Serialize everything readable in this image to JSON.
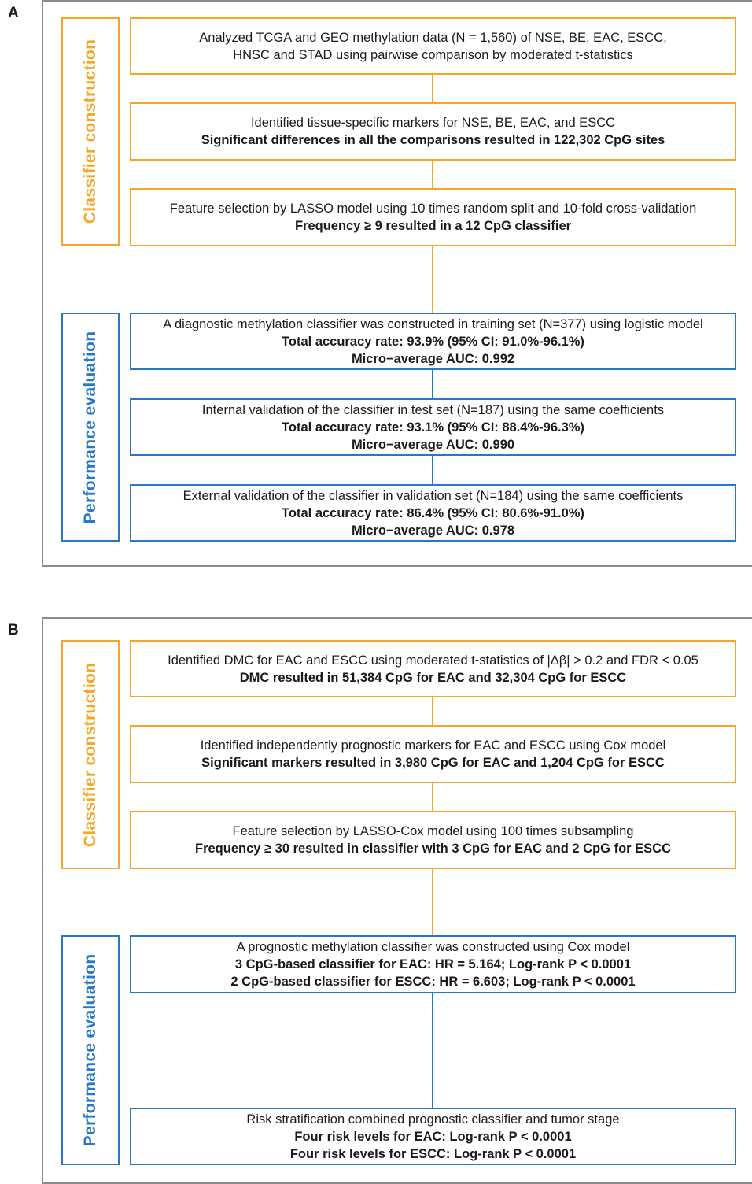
{
  "panelA": {
    "letter": "A",
    "side_labels": {
      "construction": "Classifier construction",
      "evaluation": "Performance evaluation"
    },
    "boxes": [
      {
        "l1": "Analyzed TCGA and GEO methylation data (N = 1,560) of NSE, BE, EAC, ESCC,",
        "l2": "HNSC and STAD using pairwise comparison by  moderated t-statistics"
      },
      {
        "l1": "Identified tissue-specific markers for NSE, BE, EAC, and ESCC",
        "l2": "Significant differences in all the comparisons resulted in 122,302 CpG sites"
      },
      {
        "l1": "Feature selection by  LASSO model using 10 times random split and 10-fold cross-validation",
        "l2": "Frequency ≥ 9 resulted in a 12 CpG classifier"
      },
      {
        "l1": "A diagnostic methylation classifier was constructed in training set (N=377) using logistic model",
        "l2a": "Total accuracy rate",
        "l2b": ": 93.9% (95% CI: 91.0%-96.1%)",
        "l3": "Micro−average AUC: 0.992"
      },
      {
        "l1": "Internal validation of the classifier in test set (N=187) using the same coefficients",
        "l2a": "Total accuracy rate",
        "l2b": ": 93.1% (95% CI: 88.4%-96.3%)",
        "l3": "Micro−average AUC: 0.990"
      },
      {
        "l1": "External validation of the classifier in validation set (N=184) using the same coefficients",
        "l2a": "Total accuracy rate",
        "l2b": ": 86.4% (95% CI: 80.6%-91.0%)",
        "l3": "Micro−average AUC: 0.978"
      }
    ]
  },
  "panelB": {
    "letter": "B",
    "side_labels": {
      "construction": "Classifier construction",
      "evaluation": "Performance evaluation"
    },
    "boxes": [
      {
        "l1": "Identified DMC for EAC and ESCC using moderated t-statistics of |Δβ| > 0.2 and FDR < 0.05",
        "l2": "DMC resulted in 51,384 CpG for EAC and 32,304 CpG for ESCC"
      },
      {
        "l1": "Identified independently prognostic markers for  EAC and ESCC using Cox model",
        "l2": "Significant markers resulted in 3,980 CpG for EAC and 1,204 CpG for ESCC"
      },
      {
        "l1": "Feature selection by  LASSO-Cox model using 100 times subsampling",
        "l2": "Frequency ≥ 30 resulted in classifier with 3 CpG  for EAC and 2 CpG  for ESCC"
      },
      {
        "l1": "A  prognostic methylation classifier was constructed using Cox model",
        "l2": "3 CpG-based classifier for EAC: HR = 5.164; Log-rank P < 0.0001",
        "l3": "2 CpG-based classifier for ESCC: HR = 6.603; Log-rank P < 0.0001"
      },
      {
        "l1": "Risk stratification combined prognostic classifier and tumor stage",
        "l2": "Four risk levels for EAC: Log-rank P < 0.0001",
        "l3": "Four risk levels for ESCC: Log-rank P < 0.0001"
      }
    ]
  }
}
